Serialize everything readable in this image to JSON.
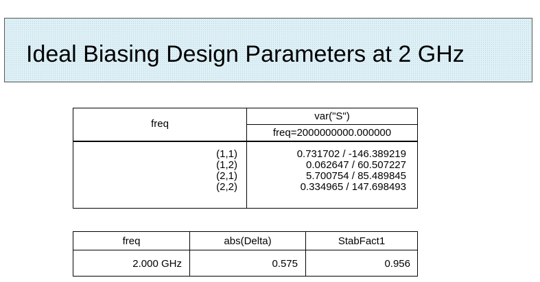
{
  "title": "Ideal Biasing Design Parameters at 2 GHz",
  "table1": {
    "col1_header": "freq",
    "col2_header": "var(\"S\")",
    "col2_subheader": "freq=2000000000.000000",
    "rows": [
      {
        "index": "(1,1)",
        "value": "0.731702 / -146.389219"
      },
      {
        "index": "(1,2)",
        "value": "0.062647 / 60.507227"
      },
      {
        "index": "(2,1)",
        "value": "5.700754 / 85.489845"
      },
      {
        "index": "(2,2)",
        "value": "0.334965 / 147.698493"
      }
    ]
  },
  "table2": {
    "headers": [
      "freq",
      "abs(Delta)",
      "StabFact1"
    ],
    "row": [
      "2.000 GHz",
      "0.575",
      "0.956"
    ]
  },
  "colors": {
    "title_background": "#dff1f7",
    "border": "#000000"
  }
}
